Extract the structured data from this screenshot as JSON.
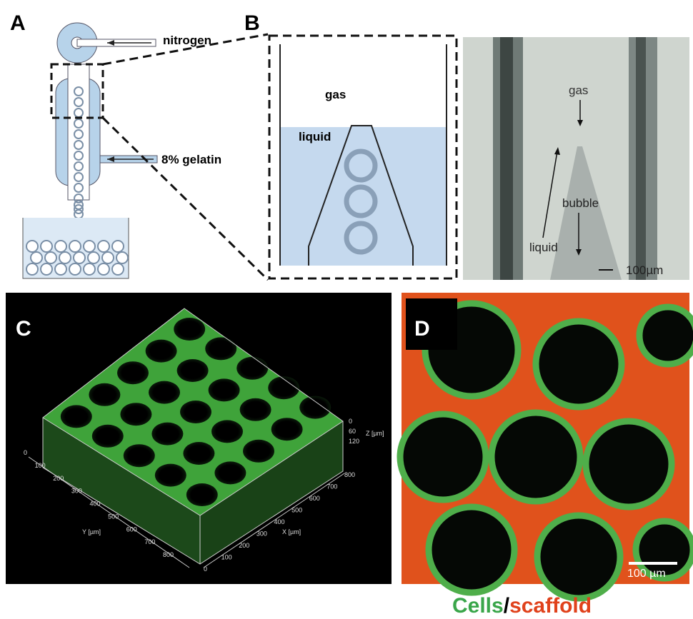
{
  "panels": {
    "a": {
      "label": "A",
      "nitrogen": "nitrogen",
      "gelatin": "8% gelatin"
    },
    "b": {
      "label": "B",
      "gas": "gas",
      "liquid": "liquid"
    },
    "b_photo": {
      "gas": "gas",
      "bubble": "bubble",
      "liquid": "liquid",
      "scale": "100µm"
    },
    "c": {
      "label": "C",
      "x_title": "X [µm]",
      "y_title": "Y [µm]",
      "z_title": "Z [µm]",
      "x_ticks": [
        0,
        100,
        200,
        300,
        400,
        500,
        600,
        700,
        800
      ],
      "y_ticks": [
        0,
        100,
        200,
        300,
        400,
        500,
        600,
        700,
        800
      ],
      "z_ticks": [
        0,
        60,
        120
      ]
    },
    "d": {
      "label": "D",
      "scale": "100 µm"
    }
  },
  "caption": {
    "cells": "Cells",
    "slash": "/",
    "scaffold": "scaffold"
  }
}
